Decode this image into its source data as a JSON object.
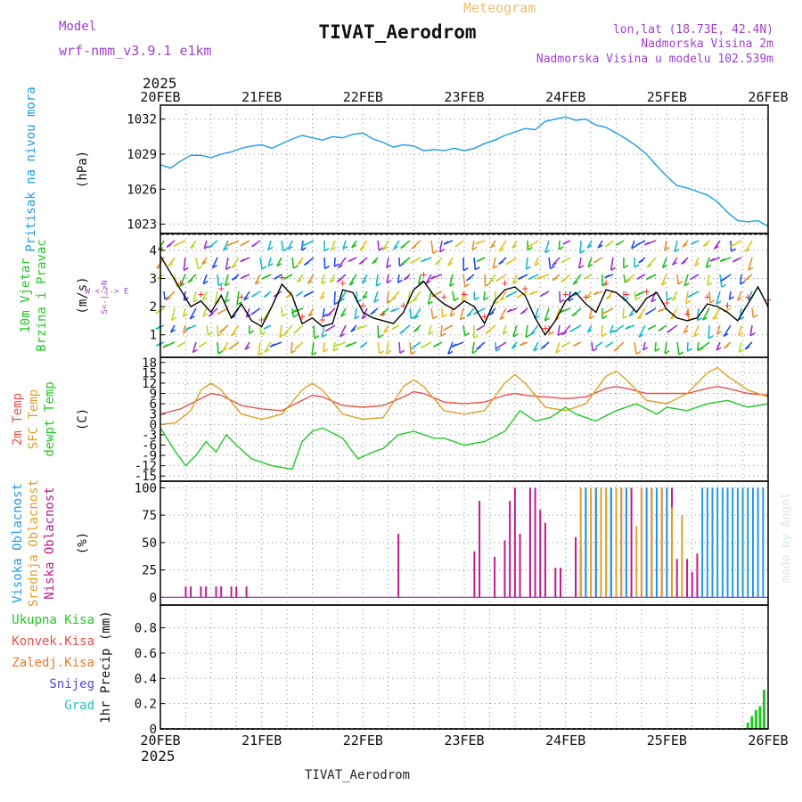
{
  "header": {
    "title": "TIVAT_Aerodrom",
    "model_label": "Model",
    "model_name": "wrf-nmm_v3.9.1 e1km",
    "meteogram_label": "Meteogram",
    "lonlat": "lon,lat (18.73E, 42.4N)",
    "elevation": "Nadmorska Visina 2m",
    "model_elevation": "Nadmorska Visina u modelu 102.539m",
    "footer_title": "TIVAT_Aerodrom",
    "credit": "made by Angel"
  },
  "colors": {
    "pressure": "#1e9be6",
    "temp2m": "#e8504a",
    "sfctemp": "#e0a028",
    "dewpt": "#22c822",
    "cloud_high": "#1e9be6",
    "cloud_mid": "#e0a028",
    "cloud_low": "#c01a8c",
    "precip": "#22c822",
    "wind_speed": "#000000",
    "gust": "#ff3030",
    "purple_text": "#a040d0",
    "orange_text": "#e8c070"
  },
  "chart_data": {
    "type": "meteogram",
    "year": "2025",
    "date_ticks": [
      "20FEB",
      "21FEB",
      "22FEB",
      "23FEB",
      "24FEB",
      "25FEB",
      "26FEB"
    ],
    "panels": [
      {
        "id": "pressure",
        "type": "line",
        "ylabel_lines": [
          "Pritisak na nivou mora"
        ],
        "unit": "(hPa)",
        "yticks": [
          1023,
          1026,
          1029,
          1032
        ],
        "ylim": [
          1022.2,
          1033.2
        ],
        "series": [
          {
            "x": [
              0,
              0.1,
              0.2,
              0.3,
              0.4,
              0.5,
              0.6,
              0.7,
              0.8,
              0.9,
              1.0,
              1.1,
              1.2,
              1.3,
              1.4,
              1.5,
              1.6,
              1.7,
              1.8,
              1.9,
              2.0,
              2.1,
              2.2,
              2.3,
              2.4,
              2.5,
              2.6,
              2.7,
              2.8,
              2.9,
              3.0,
              3.1,
              3.2,
              3.3,
              3.4,
              3.5,
              3.6,
              3.7,
              3.8,
              3.9,
              4.0,
              4.1,
              4.2,
              4.3,
              4.4,
              4.5,
              4.6,
              4.7,
              4.8,
              4.9,
              5.0,
              5.1,
              5.2,
              5.3,
              5.4,
              5.5,
              5.6,
              5.7,
              5.8,
              5.9,
              6.0
            ],
            "y": [
              1028.1,
              1027.8,
              1028.4,
              1028.9,
              1028.9,
              1028.7,
              1029.0,
              1029.2,
              1029.5,
              1029.7,
              1029.8,
              1029.5,
              1029.9,
              1030.3,
              1030.6,
              1030.4,
              1030.2,
              1030.5,
              1030.4,
              1030.7,
              1030.8,
              1030.3,
              1030.0,
              1029.6,
              1029.8,
              1029.7,
              1029.3,
              1029.4,
              1029.3,
              1029.5,
              1029.3,
              1029.5,
              1029.9,
              1030.2,
              1030.6,
              1030.9,
              1031.2,
              1031.1,
              1031.8,
              1032.0,
              1032.2,
              1031.9,
              1032.0,
              1031.5,
              1031.3,
              1030.8,
              1030.3,
              1029.7,
              1029.0,
              1028.0,
              1027.1,
              1026.3,
              1026.1,
              1025.8,
              1025.5,
              1024.9,
              1024.0,
              1023.3,
              1023.2,
              1023.3,
              1022.8
            ]
          }
        ]
      },
      {
        "id": "wind",
        "type": "line+barbs",
        "ylabel_lines": [
          "10m Vjetar",
          "Brzina i Pravac"
        ],
        "unit": "(m/s)",
        "compass": [
          "N",
          "W <-|-> E",
          "S"
        ],
        "yticks": [
          1,
          2,
          3,
          4
        ],
        "ylim": [
          0.2,
          4.6
        ],
        "series": [
          {
            "name": "speed",
            "x": [
              0,
              0.1,
              0.2,
              0.3,
              0.4,
              0.5,
              0.6,
              0.7,
              0.8,
              0.9,
              1.0,
              1.1,
              1.2,
              1.3,
              1.4,
              1.5,
              1.6,
              1.7,
              1.8,
              1.9,
              2.0,
              2.1,
              2.2,
              2.3,
              2.4,
              2.5,
              2.6,
              2.7,
              2.8,
              2.9,
              3.0,
              3.1,
              3.2,
              3.3,
              3.4,
              3.5,
              3.6,
              3.7,
              3.8,
              3.9,
              4.0,
              4.1,
              4.2,
              4.3,
              4.4,
              4.5,
              4.6,
              4.7,
              4.8,
              4.9,
              5.0,
              5.1,
              5.2,
              5.3,
              5.4,
              5.5,
              5.6,
              5.7,
              5.8,
              5.9,
              6.0
            ],
            "y": [
              3.8,
              3.2,
              2.6,
              2.0,
              2.2,
              1.8,
              2.4,
              1.6,
              2.1,
              1.5,
              1.3,
              2.0,
              2.8,
              2.4,
              1.4,
              1.6,
              1.3,
              1.4,
              2.6,
              2.5,
              1.8,
              1.6,
              1.5,
              1.4,
              1.8,
              2.6,
              2.9,
              2.4,
              2.1,
              1.9,
              2.2,
              2.0,
              1.4,
              2.2,
              2.6,
              2.7,
              2.4,
              1.6,
              1.0,
              1.5,
              2.2,
              2.5,
              2.1,
              1.8,
              2.6,
              2.5,
              2.2,
              1.8,
              2.3,
              2.5,
              1.9,
              1.6,
              1.5,
              1.6,
              2.1,
              2.0,
              1.8,
              1.5,
              2.1,
              2.7,
              2.0
            ]
          }
        ]
      },
      {
        "id": "temperature",
        "type": "line",
        "ylabel_lines": [
          "2m Temp",
          "SFC Temp",
          "dewpt Temp"
        ],
        "unit": "(C)",
        "yticks": [
          -15,
          -12,
          -9,
          -6,
          -3,
          0,
          3,
          6,
          9,
          12,
          15,
          18
        ],
        "ylim": [
          -16.5,
          19.5
        ],
        "series": [
          {
            "name": "2m Temp",
            "x": [
              0,
              0.2,
              0.4,
              0.5,
              0.6,
              0.8,
              1.0,
              1.2,
              1.4,
              1.5,
              1.6,
              1.8,
              2.0,
              2.2,
              2.4,
              2.5,
              2.6,
              2.8,
              3.0,
              3.2,
              3.4,
              3.5,
              3.6,
              3.8,
              4.0,
              4.2,
              4.4,
              4.5,
              4.6,
              4.8,
              5.0,
              5.2,
              5.4,
              5.5,
              5.6,
              5.8,
              6.0
            ],
            "y": [
              3,
              4.5,
              7.5,
              9,
              8.5,
              5.5,
              4.5,
              4,
              7,
              8.5,
              8,
              5.5,
              5,
              5.5,
              8,
              9.5,
              9,
              6.5,
              6,
              6.5,
              8.5,
              9,
              8.5,
              8,
              7.5,
              8,
              10.5,
              11,
              10.5,
              9,
              9,
              9,
              10.5,
              11,
              10.5,
              9,
              8.5
            ]
          },
          {
            "name": "SFC Temp",
            "x": [
              0,
              0.15,
              0.3,
              0.4,
              0.5,
              0.6,
              0.8,
              1.0,
              1.2,
              1.4,
              1.5,
              1.6,
              1.8,
              2.0,
              2.2,
              2.4,
              2.5,
              2.6,
              2.8,
              3.0,
              3.2,
              3.4,
              3.5,
              3.6,
              3.8,
              4.0,
              4.2,
              4.4,
              4.5,
              4.6,
              4.8,
              5.0,
              5.2,
              5.4,
              5.5,
              5.6,
              5.8,
              6.0
            ],
            "y": [
              0,
              0.5,
              4,
              10,
              12,
              10,
              3,
              1.5,
              3,
              10,
              12,
              10,
              3,
              1.5,
              2,
              11,
              13,
              11,
              4,
              3,
              4,
              12,
              14.5,
              12,
              5,
              4,
              6,
              14,
              15.5,
              13,
              7,
              6,
              9,
              15,
              16.5,
              14,
              10,
              8
            ]
          },
          {
            "name": "dewpt Temp",
            "x": [
              0,
              0.15,
              0.25,
              0.35,
              0.45,
              0.55,
              0.65,
              0.75,
              0.9,
              1.0,
              1.1,
              1.3,
              1.4,
              1.5,
              1.6,
              1.8,
              1.95,
              2.1,
              2.2,
              2.35,
              2.5,
              2.7,
              2.8,
              3.0,
              3.2,
              3.4,
              3.55,
              3.7,
              3.85,
              4.0,
              4.1,
              4.3,
              4.5,
              4.7,
              4.9,
              5.0,
              5.2,
              5.4,
              5.6,
              5.8,
              6.0
            ],
            "y": [
              -1,
              -8,
              -12,
              -9,
              -5,
              -8,
              -3,
              -6,
              -10,
              -11,
              -12,
              -13,
              -5,
              -2,
              -1,
              -4,
              -10,
              -8,
              -7,
              -3,
              -2,
              -4,
              -4,
              -6,
              -5,
              -2,
              4,
              1,
              2,
              5,
              3,
              1,
              4,
              6,
              3,
              5,
              4,
              6,
              7,
              5,
              6
            ]
          }
        ]
      },
      {
        "id": "clouds",
        "type": "bar",
        "ylabel_lines": [
          "Visoka Oblacnost",
          "Srednja Oblacnost",
          "Niska Oblacnost"
        ],
        "unit": "(%)",
        "yticks": [
          0,
          25,
          50,
          75,
          100
        ],
        "ylim": [
          -7,
          106
        ],
        "series": [
          {
            "name": "Niska Oblacnost",
            "x": [
              0.25,
              0.3,
              0.4,
              0.45,
              0.55,
              0.6,
              0.7,
              0.75,
              0.85,
              2.35,
              3.1,
              3.15,
              3.3,
              3.4,
              3.45,
              3.5,
              3.55,
              3.65,
              3.7,
              3.75,
              3.8,
              3.9,
              3.95,
              4.1,
              4.15,
              4.2,
              4.3,
              4.45,
              4.55,
              4.65,
              4.75,
              4.85,
              4.95,
              5.05,
              5.1,
              5.2,
              5.25,
              5.3
            ],
            "y": [
              10,
              10,
              10,
              10,
              10,
              10,
              10,
              10,
              10,
              58,
              42,
              88,
              37,
              52,
              88,
              100,
              58,
              100,
              100,
              80,
              68,
              27,
              27,
              55,
              45,
              100,
              100,
              100,
              100,
              100,
              100,
              100,
              100,
              100,
              35,
              35,
              23,
              40
            ]
          },
          {
            "name": "Srednja Oblacnost",
            "x": [
              4.15,
              4.2,
              4.25,
              4.35,
              4.4,
              4.5,
              4.55,
              4.6,
              4.7,
              4.75,
              4.8,
              4.85,
              4.9,
              4.95,
              5.0,
              5.05,
              5.15
            ],
            "y": [
              100,
              100,
              100,
              100,
              100,
              100,
              100,
              100,
              65,
              100,
              100,
              100,
              100,
              100,
              100,
              82,
              75
            ]
          },
          {
            "name": "Visoka Oblacnost",
            "x": [
              4.2,
              4.3,
              4.45,
              4.6,
              4.8,
              4.9,
              5.0,
              5.35,
              5.4,
              5.45,
              5.5,
              5.55,
              5.6,
              5.65,
              5.7,
              5.75,
              5.8,
              5.85,
              5.9,
              5.95
            ],
            "y": [
              100,
              100,
              100,
              100,
              100,
              100,
              100,
              100,
              100,
              100,
              100,
              100,
              100,
              100,
              100,
              100,
              100,
              100,
              100,
              100
            ]
          }
        ]
      },
      {
        "id": "precip",
        "type": "bar",
        "legend_lines": [
          "Ukupna Kisa",
          "Konvek.Kisa",
          "Zaledj.Kisa",
          "Snijeg",
          "Grad"
        ],
        "ylabel": "1hr Precip (mm)",
        "yticks": [
          0,
          0.2,
          0.4,
          0.6,
          0.8
        ],
        "ylim": [
          0,
          0.98
        ],
        "series": [
          {
            "name": "Ukupna Kisa",
            "x": [
              5.8,
              5.84,
              5.88,
              5.92,
              5.96
            ],
            "y": [
              0.05,
              0.1,
              0.15,
              0.18,
              0.31
            ]
          }
        ]
      }
    ]
  }
}
